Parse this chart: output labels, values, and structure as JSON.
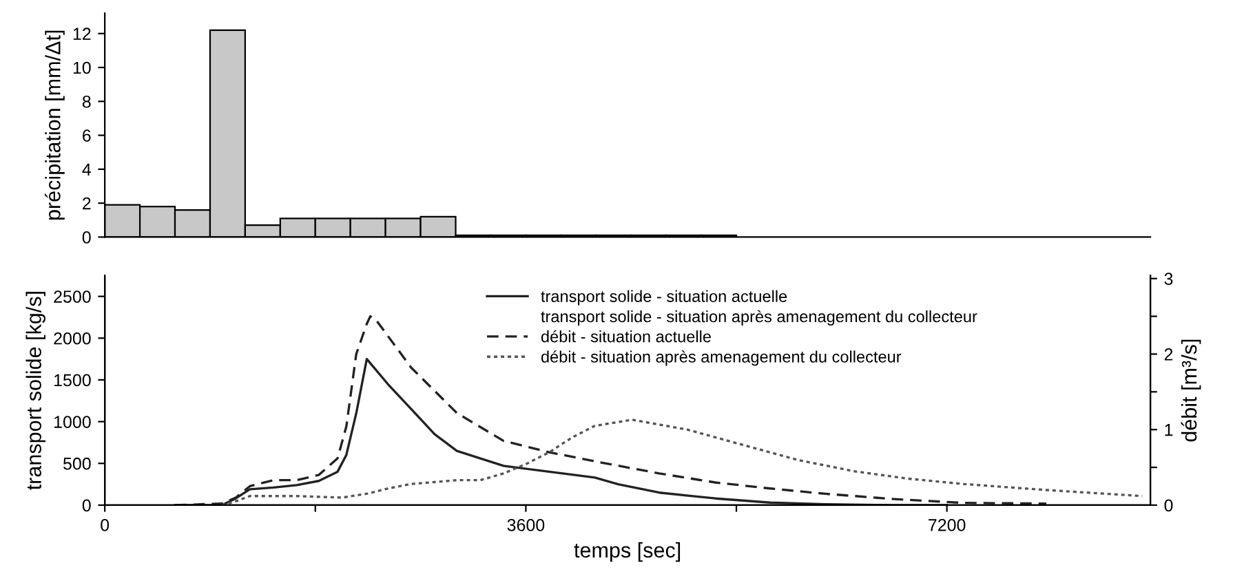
{
  "chart_data": [
    {
      "type": "histogram",
      "ylabel": "précipitation [mm/Δt]",
      "color": "#c8c8c8",
      "bins": [
        0,
        300,
        600,
        900,
        1200,
        1500,
        1800,
        2100,
        2400,
        2700,
        3000,
        3300,
        3600,
        3900,
        4200,
        4500,
        4800,
        5100,
        5400
      ],
      "values": [
        1.9,
        1.8,
        1.6,
        12.2,
        0.7,
        1.1,
        1.1,
        1.1,
        1.1,
        1.2,
        0.1,
        0.1,
        0.1,
        0.1,
        0.1,
        0.1,
        0.1,
        0.1
      ],
      "xlim": [
        0,
        8940
      ],
      "ylim": [
        0,
        13.2
      ],
      "yticks": [
        0,
        2,
        4,
        6,
        8,
        10,
        12
      ],
      "tick_labels": "y",
      "grid": false
    },
    {
      "type": "line",
      "xlabel": "temps [sec]",
      "ylabel": "transport solide [kg/s]",
      "y2label": "débit [m³/s]",
      "xlim": [
        0,
        8940
      ],
      "xticks": [
        0,
        {
          "value": 1800,
          "label": null
        },
        3600,
        {
          "value": 5400,
          "label": null
        },
        7200
      ],
      "ylim": [
        0,
        2750
      ],
      "yticks": [
        0,
        500,
        1000,
        1500,
        2000,
        2500
      ],
      "y2lim": [
        0,
        3.04
      ],
      "y2ticks": [
        0,
        {
          "value": 0.5,
          "label": null
        },
        1,
        {
          "value": 1.5,
          "label": null
        },
        2,
        {
          "value": 2.5,
          "label": null
        },
        3
      ],
      "legend": "top",
      "grid": false,
      "marker": "none",
      "annotations": [
        "transport solide - situation après amenagement du collecteur"
      ],
      "series": [
        {
          "name": "transport solide - situation actuelle",
          "color": "#222222",
          "line_style": "solid",
          "axis": "y",
          "x": [
            600,
            1000,
            1120,
            1240,
            1440,
            1640,
            1830,
            1990,
            2065,
            2150,
            2240,
            2420,
            2620,
            2820,
            3010,
            3410,
            3800,
            4190,
            4390,
            4740,
            5220,
            5690,
            6160,
            6750,
            7200
          ],
          "values": [
            0,
            0,
            80,
            190,
            210,
            240,
            290,
            400,
            600,
            1100,
            1750,
            1450,
            1150,
            850,
            650,
            470,
            400,
            330,
            250,
            150,
            80,
            30,
            10,
            0,
            0
          ]
        },
        {
          "name": "débit - situation actuelle",
          "color": "#222222",
          "line_style": "dashed",
          "axis": "y2",
          "x": [
            600,
            1000,
            1120,
            1240,
            1440,
            1640,
            1830,
            1990,
            2065,
            2150,
            2240,
            2270,
            2320,
            2620,
            3010,
            3410,
            3800,
            4190,
            4740,
            5220,
            5690,
            6160,
            6750,
            7340,
            8050
          ],
          "values": [
            0,
            0.02,
            0.1,
            0.25,
            0.33,
            0.33,
            0.4,
            0.62,
            1.04,
            2.0,
            2.4,
            2.5,
            2.45,
            1.82,
            1.22,
            0.85,
            0.7,
            0.58,
            0.42,
            0.3,
            0.22,
            0.15,
            0.08,
            0.03,
            0.02
          ]
        },
        {
          "name": "débit - situation après amenagement du collecteur",
          "color": "#555555",
          "line_style": "dotted",
          "axis": "y2",
          "x": [
            1000,
            1120,
            1240,
            1640,
            2030,
            2240,
            2420,
            2620,
            3010,
            3210,
            3410,
            3610,
            3800,
            4000,
            4190,
            4510,
            4980,
            5450,
            5920,
            6400,
            6870,
            7340,
            8050,
            8870
          ],
          "values": [
            0,
            0.05,
            0.12,
            0.12,
            0.1,
            0.15,
            0.22,
            0.28,
            0.33,
            0.33,
            0.42,
            0.55,
            0.7,
            0.9,
            1.05,
            1.13,
            1.0,
            0.8,
            0.6,
            0.45,
            0.35,
            0.28,
            0.2,
            0.12
          ]
        }
      ]
    }
  ]
}
